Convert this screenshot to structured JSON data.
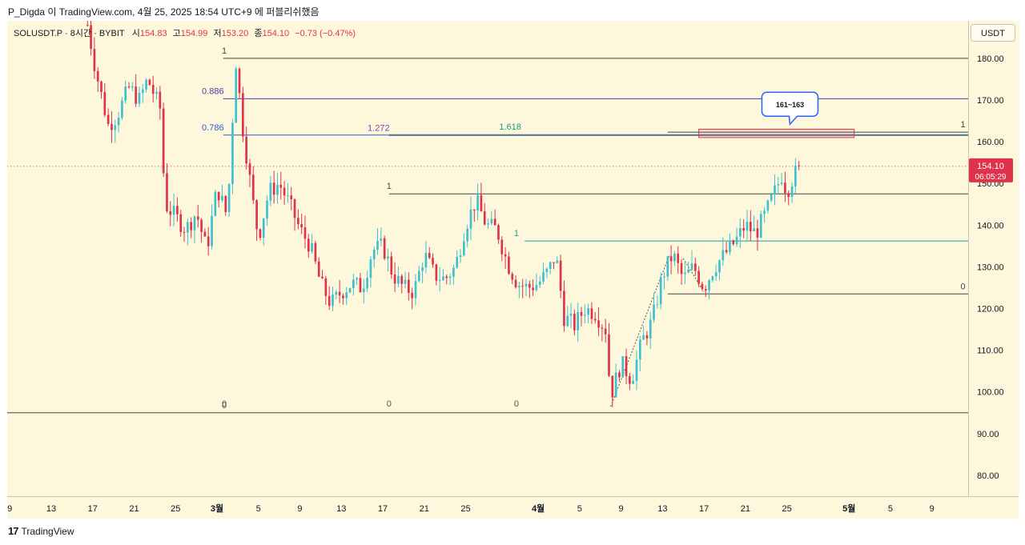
{
  "header": {
    "title": "P_Digda 이 TradingView.com, 4월 25, 2025 18:54 UTC+9 에 퍼블리쉬했음"
  },
  "symbol": {
    "name": "SOLUSDT.P · 8시간 · BYBIT",
    "open_label": "시",
    "open": "154.83",
    "high_label": "고",
    "high": "154.99",
    "low_label": "저",
    "low": "153.20",
    "close_label": "종",
    "close": "154.10",
    "change": "−0.73 (−0.47%)"
  },
  "currency": "USDT",
  "price_tag": {
    "price": "154.10",
    "countdown": "06:05:29"
  },
  "footer": {
    "brand_mark": "17",
    "brand": "TradingView"
  },
  "colors": {
    "up": "#3ec0d0",
    "down": "#e0334b",
    "background": "#fdf8dc"
  },
  "chart_data": {
    "type": "candlestick",
    "title": "SOLUSDT.P · 8시간 · BYBIT",
    "ylim": [
      75,
      189
    ],
    "y_ticks": [
      "180.00",
      "170.00",
      "160.00",
      "150.00",
      "140.00",
      "130.00",
      "120.00",
      "110.00",
      "100.00",
      "90.00",
      "80.00"
    ],
    "x_ticks": [
      {
        "label": "9",
        "day": 0
      },
      {
        "label": "13",
        "day": 4
      },
      {
        "label": "17",
        "day": 8
      },
      {
        "label": "21",
        "day": 12
      },
      {
        "label": "25",
        "day": 16
      },
      {
        "label": "3월",
        "day": 20
      },
      {
        "label": "5",
        "day": 24
      },
      {
        "label": "9",
        "day": 28
      },
      {
        "label": "13",
        "day": 32
      },
      {
        "label": "17",
        "day": 36
      },
      {
        "label": "21",
        "day": 40
      },
      {
        "label": "25",
        "day": 44
      },
      {
        "label": "4월",
        "day": 51
      },
      {
        "label": "5",
        "day": 55
      },
      {
        "label": "9",
        "day": 59
      },
      {
        "label": "13",
        "day": 63
      },
      {
        "label": "17",
        "day": 67
      },
      {
        "label": "21",
        "day": 71
      },
      {
        "label": "25",
        "day": 75
      },
      {
        "label": "5월",
        "day": 81
      },
      {
        "label": "5",
        "day": 85
      },
      {
        "label": "9",
        "day": 89
      }
    ],
    "x_range": [
      -0.25,
      92.5
    ],
    "candles_per_day": 3,
    "path": [
      {
        "d": 7.5,
        "p": 188
      },
      {
        "d": 8.3,
        "p": 177
      },
      {
        "d": 9.5,
        "p": 164
      },
      {
        "d": 10.3,
        "p": 166
      },
      {
        "d": 11.5,
        "p": 173
      },
      {
        "d": 12.5,
        "p": 170
      },
      {
        "d": 13.3,
        "p": 175
      },
      {
        "d": 14.5,
        "p": 168
      },
      {
        "d": 15,
        "p": 145
      },
      {
        "d": 16,
        "p": 142
      },
      {
        "d": 17,
        "p": 139
      },
      {
        "d": 18,
        "p": 143
      },
      {
        "d": 19,
        "p": 134
      },
      {
        "d": 20,
        "p": 149
      },
      {
        "d": 21,
        "p": 142
      },
      {
        "d": 21.8,
        "p": 180
      },
      {
        "d": 22.5,
        "p": 163
      },
      {
        "d": 23.5,
        "p": 145
      },
      {
        "d": 24,
        "p": 137
      },
      {
        "d": 25,
        "p": 148
      },
      {
        "d": 26,
        "p": 150
      },
      {
        "d": 27,
        "p": 145
      },
      {
        "d": 28,
        "p": 139
      },
      {
        "d": 29,
        "p": 135
      },
      {
        "d": 30,
        "p": 126
      },
      {
        "d": 31,
        "p": 121
      },
      {
        "d": 32,
        "p": 124
      },
      {
        "d": 33,
        "p": 126
      },
      {
        "d": 34,
        "p": 125
      },
      {
        "d": 35,
        "p": 134
      },
      {
        "d": 36,
        "p": 135
      },
      {
        "d": 37,
        "p": 128
      },
      {
        "d": 38,
        "p": 125
      },
      {
        "d": 39,
        "p": 124
      },
      {
        "d": 40,
        "p": 133
      },
      {
        "d": 41,
        "p": 128
      },
      {
        "d": 42,
        "p": 127
      },
      {
        "d": 43,
        "p": 130
      },
      {
        "d": 44,
        "p": 140
      },
      {
        "d": 45,
        "p": 146
      },
      {
        "d": 46,
        "p": 140
      },
      {
        "d": 47,
        "p": 139
      },
      {
        "d": 48,
        "p": 131
      },
      {
        "d": 49,
        "p": 126
      },
      {
        "d": 50,
        "p": 125
      },
      {
        "d": 51,
        "p": 126
      },
      {
        "d": 52,
        "p": 129
      },
      {
        "d": 52.7,
        "p": 133
      },
      {
        "d": 53.5,
        "p": 118
      },
      {
        "d": 54.5,
        "p": 116
      },
      {
        "d": 55.5,
        "p": 120
      },
      {
        "d": 56.5,
        "p": 119
      },
      {
        "d": 57.5,
        "p": 115
      },
      {
        "d": 58,
        "p": 99
      },
      {
        "d": 59,
        "p": 107
      },
      {
        "d": 60,
        "p": 103
      },
      {
        "d": 61,
        "p": 112
      },
      {
        "d": 62,
        "p": 117
      },
      {
        "d": 63,
        "p": 128
      },
      {
        "d": 64,
        "p": 133
      },
      {
        "d": 65,
        "p": 127
      },
      {
        "d": 66,
        "p": 130
      },
      {
        "d": 67,
        "p": 125
      },
      {
        "d": 68,
        "p": 130
      },
      {
        "d": 69,
        "p": 133
      },
      {
        "d": 70,
        "p": 136
      },
      {
        "d": 71,
        "p": 140
      },
      {
        "d": 72,
        "p": 138
      },
      {
        "d": 73,
        "p": 143
      },
      {
        "d": 74,
        "p": 149
      },
      {
        "d": 74.5,
        "p": 152
      },
      {
        "d": 75,
        "p": 148
      },
      {
        "d": 75.5,
        "p": 151
      },
      {
        "d": 76.2,
        "p": 154.1
      }
    ],
    "fib_levels": [
      {
        "price": 180,
        "label": "1",
        "label_day": 20.7,
        "from": 20.6,
        "to": 92.5,
        "color": "#444444"
      },
      {
        "price": 170.3,
        "label": "0.886",
        "label_day": 19.6,
        "from": 20.6,
        "to": 92.5,
        "color": "#4a3fae"
      },
      {
        "price": 161.6,
        "label": "0.786",
        "label_day": 19.6,
        "from": 20.6,
        "to": 92.5,
        "color": "#2f5fd0"
      },
      {
        "price": 95,
        "label": "0",
        "label_day": 20.7,
        "from": -0.25,
        "to": 92.5,
        "color": "#444444"
      },
      {
        "price": 161.5,
        "label": "1.272",
        "label_day": 35.6,
        "from": 36.6,
        "to": 92.5,
        "color": "#8a3fa8"
      },
      {
        "price": 161.7,
        "label": "1.618",
        "label_day": 48.3,
        "from": 36.6,
        "to": 92.5,
        "color": "#1a9c78"
      },
      {
        "price": 147.5,
        "label": "1",
        "label_day": 36.6,
        "from": 36.6,
        "to": 92.5,
        "color": "#444444"
      },
      {
        "price": 136.2,
        "label": "1",
        "label_day": 48.9,
        "from": 49.7,
        "to": 92.5,
        "color": "#1a9c9c"
      },
      {
        "price": 123.5,
        "label": "0",
        "label_day": 92,
        "from": 63.5,
        "to": 92.5,
        "color": "#444444"
      },
      {
        "price": 162.3,
        "label": "1",
        "label_day": 92,
        "from": 63.5,
        "to": 92.5,
        "color": "#444444"
      }
    ],
    "zero_labels": [
      {
        "label": "0",
        "day": 20.7
      },
      {
        "label": "0",
        "day": 36.6
      },
      {
        "label": "0",
        "day": 48.9
      }
    ],
    "target_zone": {
      "low": 161,
      "high": 163,
      "day_from": 66.5,
      "day_to": 81.5
    },
    "annotation": {
      "text": "161~163",
      "day": 75.3,
      "price": 169
    },
    "last_price": 154.1
  }
}
